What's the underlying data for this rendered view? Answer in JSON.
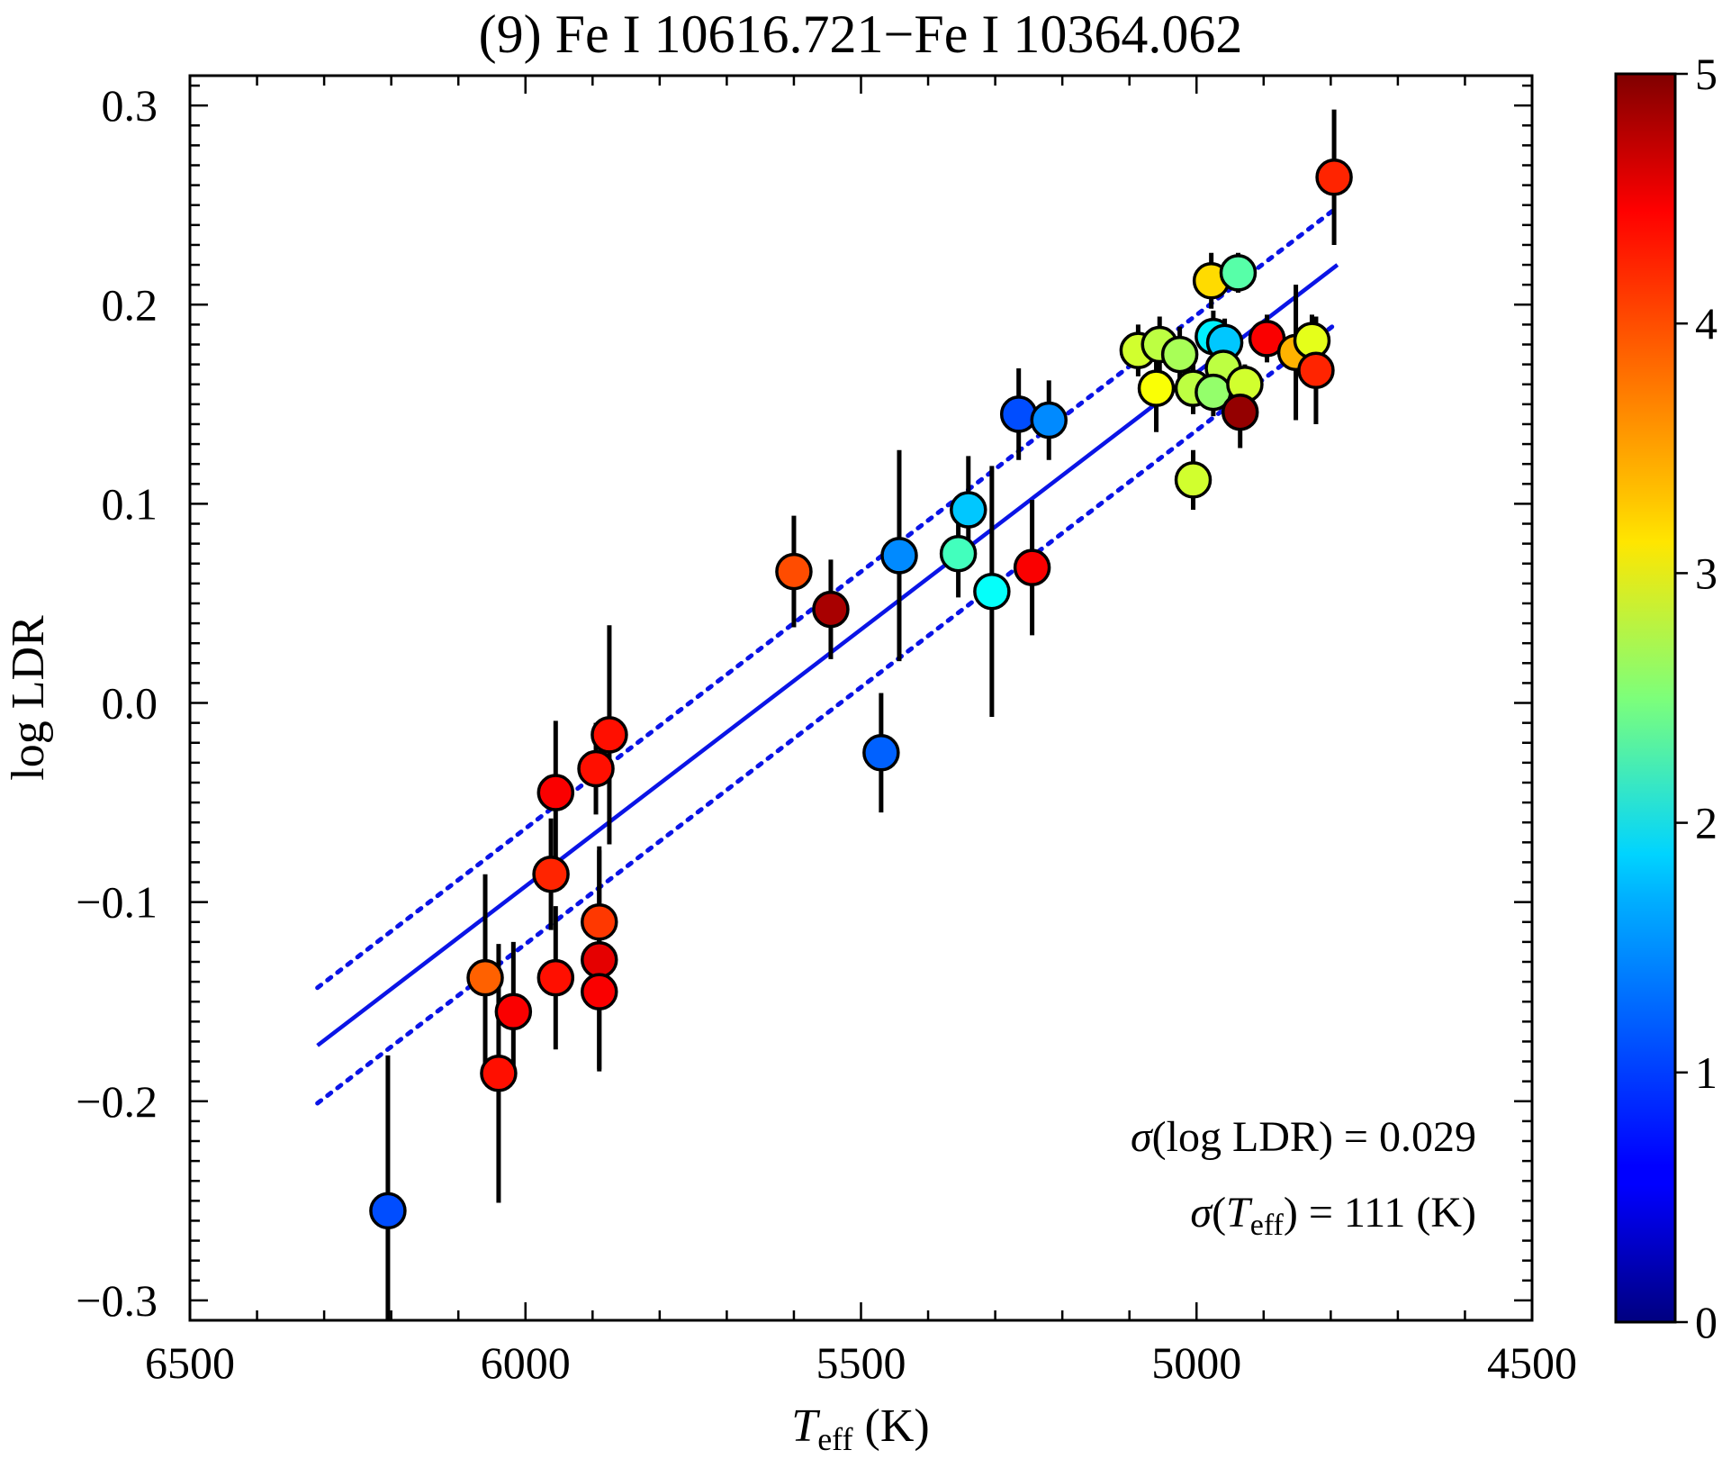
{
  "chart_data": {
    "type": "scatter",
    "title": "(9) Fe I 10616.721−Fe I 10364.062",
    "xlabel_main": "T",
    "xlabel_sub": "eff",
    "xlabel_unit": " (K)",
    "ylabel": "log LDR",
    "xlim": [
      6500,
      4500
    ],
    "ylim": [
      -0.31,
      0.315
    ],
    "xticks": [
      6500,
      6000,
      5500,
      5000,
      4500
    ],
    "xtick_labels": [
      "6500",
      "6000",
      "5500",
      "5000",
      "4500"
    ],
    "yticks": [
      -0.3,
      -0.2,
      -0.1,
      0.0,
      0.1,
      0.2,
      0.3
    ],
    "ytick_labels": [
      "−0.3",
      "−0.2",
      "−0.1",
      "0.0",
      "0.1",
      "0.2",
      "0.3"
    ],
    "colorbar": {
      "min": 0,
      "max": 5,
      "ticks": [
        0,
        1,
        2,
        3,
        4,
        5
      ],
      "tick_labels": [
        "0",
        "1",
        "2",
        "3",
        "4",
        "5"
      ],
      "colormap": "jet"
    },
    "fit": {
      "x_range": [
        6310,
        4790
      ],
      "y_at_start": -0.172,
      "y_at_end": 0.22,
      "band_offset": 0.029,
      "line_color": "#0a14e6"
    },
    "annotations": {
      "sigma_ldr": {
        "prefix": "σ",
        "body": "(log LDR) = 0.029"
      },
      "sigma_teff": {
        "prefix": "σ",
        "open": "(",
        "t": "T",
        "sub": "eff",
        "rest": ") = 111 (K)"
      }
    },
    "points": [
      {
        "x": 6205,
        "y": -0.255,
        "err": 0.078,
        "c": 1.0
      },
      {
        "x": 6060,
        "y": -0.138,
        "err": 0.052,
        "c": 3.9
      },
      {
        "x": 6040,
        "y": -0.186,
        "err": 0.065,
        "c": 4.3
      },
      {
        "x": 6018,
        "y": -0.155,
        "err": 0.035,
        "c": 4.4
      },
      {
        "x": 5962,
        "y": -0.086,
        "err": 0.028,
        "c": 4.2
      },
      {
        "x": 5955,
        "y": -0.045,
        "err": 0.036,
        "c": 4.4
      },
      {
        "x": 5955,
        "y": -0.138,
        "err": 0.036,
        "c": 4.3
      },
      {
        "x": 5895,
        "y": -0.033,
        "err": 0.023,
        "c": 4.3
      },
      {
        "x": 5890,
        "y": -0.11,
        "err": 0.038,
        "c": 4.1
      },
      {
        "x": 5890,
        "y": -0.129,
        "err": 0.055,
        "c": 4.5
      },
      {
        "x": 5890,
        "y": -0.145,
        "err": 0.04,
        "c": 4.4
      },
      {
        "x": 5875,
        "y": -0.016,
        "err": 0.055,
        "c": 4.3
      },
      {
        "x": 5600,
        "y": 0.066,
        "err": 0.028,
        "c": 4.0
      },
      {
        "x": 5545,
        "y": 0.047,
        "err": 0.025,
        "c": 4.8
      },
      {
        "x": 5470,
        "y": -0.025,
        "err": 0.03,
        "c": 1.1
      },
      {
        "x": 5443,
        "y": 0.074,
        "err": 0.053,
        "c": 1.3
      },
      {
        "x": 5355,
        "y": 0.075,
        "err": 0.022,
        "c": 2.2
      },
      {
        "x": 5340,
        "y": 0.097,
        "err": 0.027,
        "c": 1.6
      },
      {
        "x": 5305,
        "y": 0.056,
        "err": 0.063,
        "c": 1.9
      },
      {
        "x": 5245,
        "y": 0.068,
        "err": 0.034,
        "c": 4.4
      },
      {
        "x": 5265,
        "y": 0.145,
        "err": 0.023,
        "c": 1.0
      },
      {
        "x": 5220,
        "y": 0.142,
        "err": 0.02,
        "c": 1.3
      },
      {
        "x": 5087,
        "y": 0.177,
        "err": 0.013,
        "c": 2.9
      },
      {
        "x": 5055,
        "y": 0.18,
        "err": 0.014,
        "c": 2.8
      },
      {
        "x": 5025,
        "y": 0.175,
        "err": 0.014,
        "c": 2.7
      },
      {
        "x": 5060,
        "y": 0.158,
        "err": 0.022,
        "c": 3.1
      },
      {
        "x": 5005,
        "y": 0.112,
        "err": 0.015,
        "c": 2.9
      },
      {
        "x": 5005,
        "y": 0.158,
        "err": 0.013,
        "c": 2.8
      },
      {
        "x": 4978,
        "y": 0.212,
        "err": 0.014,
        "c": 3.3
      },
      {
        "x": 4975,
        "y": 0.184,
        "err": 0.013,
        "c": 1.8
      },
      {
        "x": 4958,
        "y": 0.181,
        "err": 0.012,
        "c": 1.6
      },
      {
        "x": 4960,
        "y": 0.168,
        "err": 0.012,
        "c": 2.8
      },
      {
        "x": 4975,
        "y": 0.156,
        "err": 0.012,
        "c": 2.6
      },
      {
        "x": 4938,
        "y": 0.216,
        "err": 0.01,
        "c": 2.3
      },
      {
        "x": 4928,
        "y": 0.16,
        "err": 0.01,
        "c": 2.9
      },
      {
        "x": 4935,
        "y": 0.146,
        "err": 0.018,
        "c": 4.9
      },
      {
        "x": 4895,
        "y": 0.183,
        "err": 0.012,
        "c": 4.4
      },
      {
        "x": 4852,
        "y": 0.176,
        "err": 0.034,
        "c": 3.5
      },
      {
        "x": 4828,
        "y": 0.182,
        "err": 0.013,
        "c": 3.0
      },
      {
        "x": 4822,
        "y": 0.167,
        "err": 0.027,
        "c": 4.2
      },
      {
        "x": 4795,
        "y": 0.264,
        "err": 0.034,
        "c": 4.2
      }
    ]
  }
}
